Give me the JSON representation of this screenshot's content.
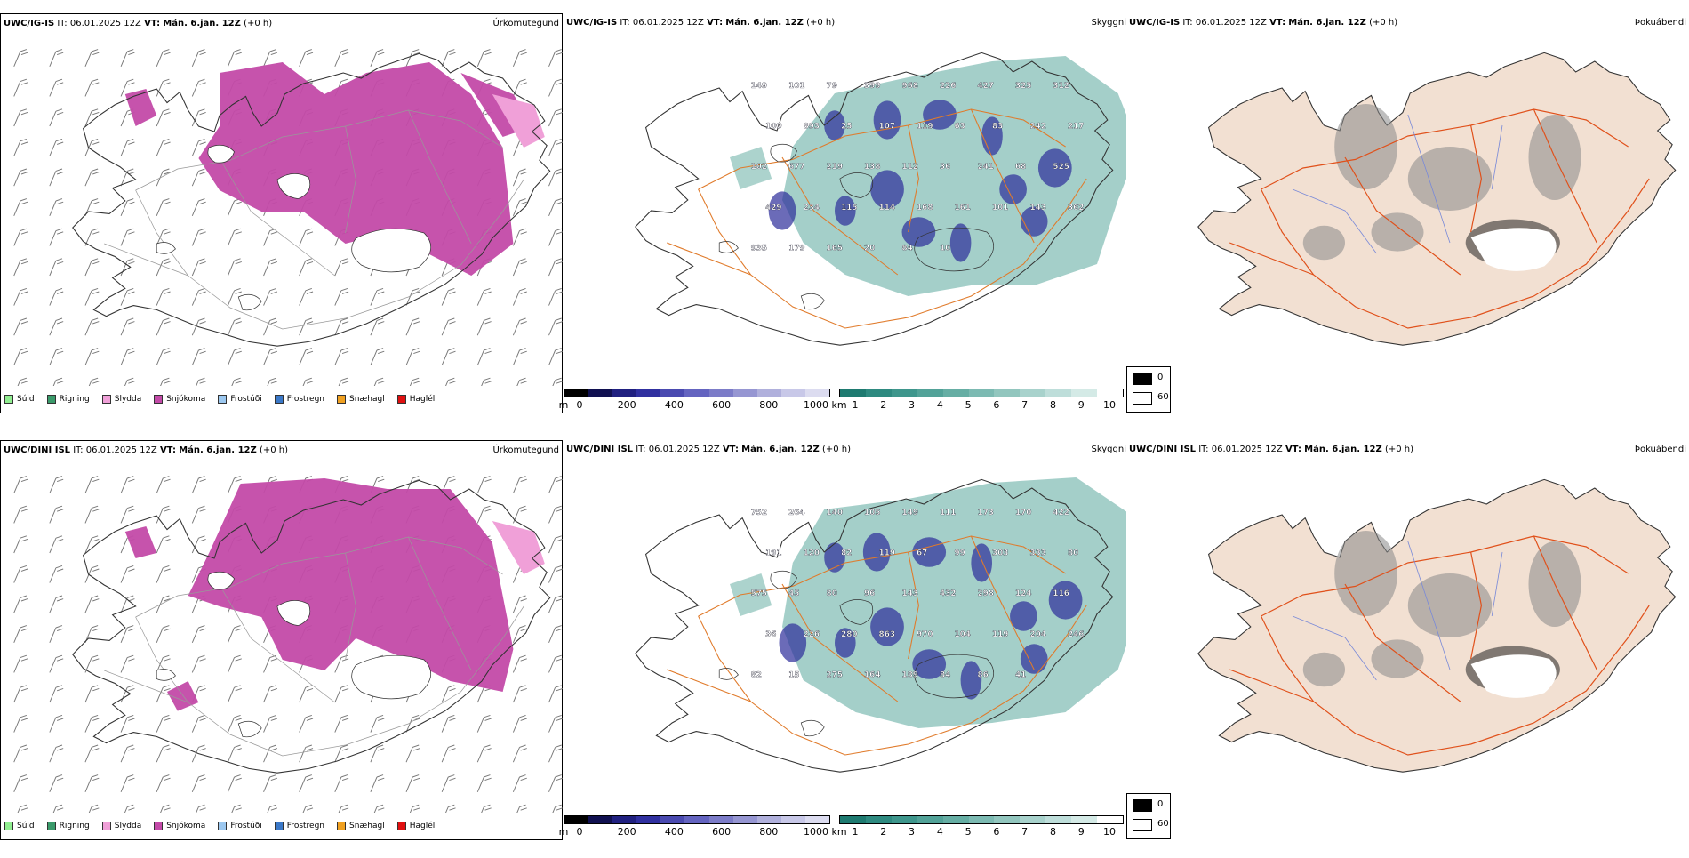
{
  "rows": [
    {
      "model": "UWC/IG-IS",
      "it_label": "IT:",
      "it": "06.01.2025 12Z",
      "vt_label": "VT:",
      "vt": "Mán. 6.jan. 12Z",
      "lead": "(+0 h)"
    },
    {
      "model": "UWC/DINI ISL",
      "it_label": "IT:",
      "it": "06.01.2025 12Z",
      "vt_label": "VT:",
      "vt": "Mán. 6.jan. 12Z",
      "lead": "(+0 h)"
    }
  ],
  "panel_titles": {
    "precip": "Úrkomutegund",
    "cloud": "Skyggni",
    "fog": "Þokuábendi"
  },
  "precip_legend": [
    {
      "label": "Súld",
      "color": "#90ee90"
    },
    {
      "label": "Rigning",
      "color": "#3a9a6a"
    },
    {
      "label": "Slydda",
      "color": "#f0a0d8"
    },
    {
      "label": "Snjókoma",
      "color": "#c34aa8"
    },
    {
      "label": "Frostúði",
      "color": "#9cc8f0"
    },
    {
      "label": "Frostregn",
      "color": "#3a78c8"
    },
    {
      "label": "Snæhagl",
      "color": "#f0a020"
    },
    {
      "label": "Haglél",
      "color": "#e01010"
    }
  ],
  "cloudbase_bar": {
    "unit": "m",
    "ticks": [
      "0",
      "200",
      "400",
      "600",
      "800",
      "1000"
    ],
    "colors": [
      "#000000",
      "#101050",
      "#202080",
      "#3030a0",
      "#4a4ab0",
      "#6464c0",
      "#7c7cc8",
      "#9696d2",
      "#b0b0dc",
      "#c8c8e8",
      "#dcdcf0"
    ]
  },
  "visibility_bar": {
    "unit": "km",
    "ticks": [
      "1",
      "2",
      "3",
      "4",
      "5",
      "6",
      "7",
      "8",
      "9",
      "10"
    ],
    "colors": [
      "#1e7a70",
      "#2e8a80",
      "#3e968c",
      "#52a298",
      "#66aea4",
      "#7cbab2",
      "#92c6be",
      "#a8d2cc",
      "#bededa",
      "#d4eae6",
      "#ffffff"
    ]
  },
  "fog_legend": [
    {
      "label": "0",
      "color": "#000000"
    },
    {
      "label": "60",
      "color": "#ffffff"
    }
  ],
  "cloud_labels_row0": [
    "149",
    "101",
    "79",
    "399",
    "968",
    "226",
    "427",
    "325",
    "312",
    "100",
    "893",
    "25",
    "107",
    "119",
    "63",
    "83",
    "242",
    "217",
    "102",
    "677",
    "219",
    "138",
    "112",
    "36",
    "241",
    "68",
    "525",
    "429",
    "234",
    "115",
    "114",
    "168",
    "161",
    "101",
    "143",
    "362",
    "935",
    "179",
    "165",
    "20",
    "84",
    "10"
  ],
  "cloud_labels_row1": [
    "752",
    "264",
    "140",
    "105",
    "149",
    "111",
    "173",
    "170",
    "422",
    "191",
    "120",
    "82",
    "119",
    "67",
    "99",
    "303",
    "333",
    "80",
    "575",
    "45",
    "80",
    "96",
    "143",
    "432",
    "298",
    "124",
    "116",
    "36",
    "226",
    "280",
    "863",
    "970",
    "104",
    "119",
    "204",
    "246",
    "82",
    "15",
    "275",
    "164",
    "189",
    "84",
    "86",
    "41"
  ]
}
